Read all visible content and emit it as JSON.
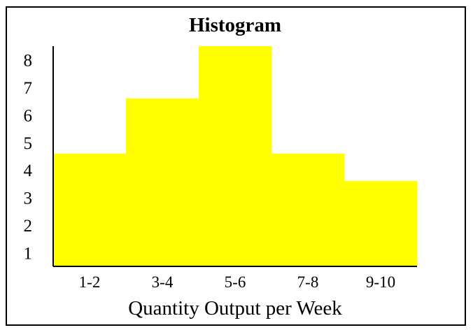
{
  "chart_data": {
    "type": "bar",
    "title": "Histogram",
    "xlabel": "Quantity Output per Week",
    "ylabel": "",
    "categories": [
      "1-2",
      "3-4",
      "5-6",
      "7-8",
      "9-10"
    ],
    "values": [
      4.6,
      6.6,
      8.5,
      4.6,
      3.6
    ],
    "yticks": [
      "1",
      "2",
      "3",
      "4",
      "5",
      "6",
      "7",
      "8"
    ],
    "ylim": [
      0.5,
      8.5
    ],
    "grid": false,
    "bar_color": "#ffff00",
    "bar_style": "histogram-contiguous"
  }
}
